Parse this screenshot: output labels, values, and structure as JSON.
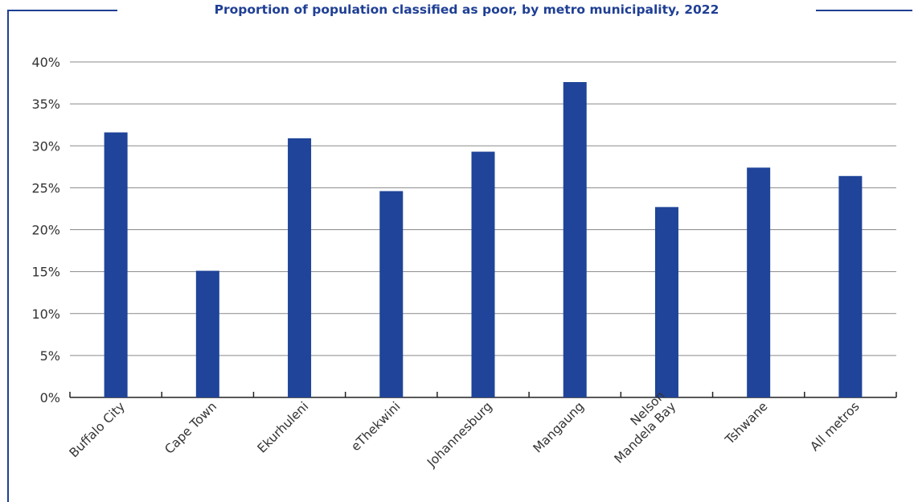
{
  "colors": {
    "bar": "#1f4499",
    "frame": "#1f3f95",
    "title": "#1f3f95",
    "grid": "#8a8a8a",
    "axis": "#222222",
    "text": "#333333"
  },
  "chart_data": {
    "type": "bar",
    "title": "Proportion of population classified as poor, by metro municipality, 2022",
    "xlabel": "",
    "ylabel": "",
    "categories": [
      [
        "Buffalo City"
      ],
      [
        "Cape Town"
      ],
      [
        "Ekurhuleni"
      ],
      [
        "eThekwini"
      ],
      [
        "Johannesburg"
      ],
      [
        "Mangaung"
      ],
      [
        "Nelson",
        "Mandela Bay"
      ],
      [
        "Tshwane"
      ],
      [
        "All metros"
      ]
    ],
    "values": [
      31.6,
      15.1,
      30.9,
      24.6,
      29.3,
      37.6,
      22.7,
      27.4,
      26.4
    ],
    "ylim": [
      0,
      40
    ],
    "yticks": [
      "0%",
      "5%",
      "10%",
      "15%",
      "20%",
      "25%",
      "30%",
      "35%",
      "40%"
    ],
    "grid": true,
    "legend": "none"
  }
}
